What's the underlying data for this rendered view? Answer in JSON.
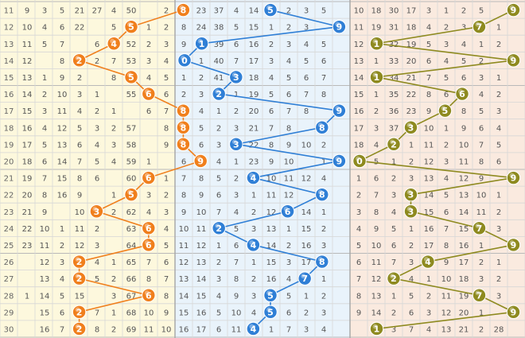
{
  "chart_data": {
    "type": "line",
    "x": [
      11,
      12,
      13,
      14,
      15,
      16,
      17,
      18,
      19,
      20,
      21,
      22,
      23,
      24,
      25,
      26,
      27,
      28,
      29,
      30
    ],
    "series": [
      {
        "values": [
          8,
          5,
          4,
          2,
          5,
          6,
          8,
          8,
          8,
          9,
          6,
          5,
          3,
          6,
          6,
          2,
          2,
          6,
          2,
          2
        ],
        "color": "#f07f1c"
      },
      {
        "values": [
          5,
          9,
          1,
          0,
          3,
          2,
          9,
          8,
          3,
          9,
          4,
          8,
          6,
          2,
          4,
          8,
          7,
          5,
          5,
          4
        ],
        "color": "#2f7fd6"
      },
      {
        "values": [
          9,
          7,
          1,
          9,
          1,
          6,
          5,
          3,
          2,
          0,
          9,
          3,
          3,
          7,
          9,
          4,
          2,
          7,
          9,
          1
        ],
        "color": "#8e8a1f"
      }
    ],
    "left_cols": [
      [
        9,
        3,
        5,
        21,
        27,
        4,
        50,
        null,
        2
      ],
      [
        10,
        4,
        6,
        22,
        null,
        5,
        51,
        1,
        2
      ],
      [
        11,
        5,
        7,
        null,
        6,
        1,
        52,
        2,
        3
      ],
      [
        12,
        null,
        8,
        1,
        2,
        7,
        53,
        3,
        4
      ],
      [
        13,
        1,
        9,
        2,
        null,
        8,
        54,
        4,
        5
      ],
      [
        14,
        2,
        10,
        3,
        1,
        null,
        55,
        5,
        6
      ],
      [
        15,
        3,
        11,
        4,
        2,
        1,
        null,
        6,
        7
      ],
      [
        16,
        4,
        12,
        5,
        3,
        2,
        57,
        null,
        8
      ],
      [
        17,
        5,
        13,
        6,
        4,
        3,
        58,
        null,
        9
      ],
      [
        18,
        6,
        14,
        7,
        5,
        4,
        59,
        1,
        null
      ],
      [
        19,
        7,
        15,
        8,
        6,
        null,
        60,
        2,
        1
      ],
      [
        20,
        8,
        16,
        9,
        null,
        1,
        61,
        3,
        2
      ],
      [
        21,
        9,
        null,
        10,
        1,
        2,
        62,
        4,
        3
      ],
      [
        22,
        10,
        1,
        11,
        2,
        null,
        63,
        5,
        4
      ],
      [
        23,
        11,
        2,
        12,
        3,
        null,
        64,
        6,
        5
      ],
      [
        null,
        12,
        3,
        13,
        4,
        1,
        65,
        7,
        6
      ],
      [
        null,
        13,
        4,
        14,
        5,
        2,
        66,
        8,
        7
      ],
      [
        1,
        14,
        5,
        15,
        null,
        3,
        67,
        9,
        8
      ],
      [
        null,
        15,
        6,
        16,
        7,
        1,
        68,
        10,
        9
      ],
      [
        null,
        16,
        7,
        17,
        8,
        2,
        69,
        11,
        10
      ]
    ],
    "mid_cols": [
      [
        7,
        23,
        37,
        4,
        14,
        null,
        2,
        3,
        5
      ],
      [
        8,
        24,
        38,
        5,
        15,
        1,
        2,
        3,
        null
      ],
      [
        9,
        null,
        39,
        6,
        16,
        2,
        3,
        4,
        5
      ],
      [
        null,
        1,
        40,
        7,
        17,
        3,
        4,
        5,
        6
      ],
      [
        1,
        2,
        41,
        null,
        18,
        4,
        5,
        6,
        7
      ],
      [
        2,
        3,
        null,
        1,
        19,
        5,
        6,
        7,
        8
      ],
      [
        3,
        4,
        1,
        2,
        20,
        6,
        7,
        8,
        null
      ],
      [
        4,
        5,
        2,
        3,
        21,
        7,
        8,
        null,
        9
      ],
      [
        5,
        6,
        3,
        null,
        22,
        8,
        9,
        10,
        2
      ],
      [
        6,
        7,
        4,
        1,
        23,
        9,
        10,
        null,
        1
      ],
      [
        7,
        8,
        5,
        2,
        null,
        10,
        11,
        12,
        4
      ],
      [
        8,
        9,
        6,
        3,
        1,
        11,
        12,
        null,
        1
      ],
      [
        9,
        10,
        7,
        4,
        2,
        12,
        null,
        14,
        1
      ],
      [
        10,
        11,
        null,
        5,
        3,
        13,
        1,
        15,
        2
      ],
      [
        11,
        12,
        1,
        6,
        null,
        14,
        2,
        16,
        3
      ],
      [
        12,
        13,
        2,
        7,
        1,
        15,
        3,
        17,
        null
      ],
      [
        13,
        14,
        3,
        8,
        2,
        16,
        4,
        null,
        1
      ],
      [
        14,
        15,
        4,
        9,
        3,
        null,
        5,
        1,
        2
      ],
      [
        15,
        16,
        5,
        10,
        4,
        null,
        6,
        2,
        3
      ],
      [
        16,
        17,
        6,
        11,
        null,
        1,
        7,
        3,
        4
      ]
    ],
    "right_cols": [
      [
        10,
        18,
        30,
        17,
        3,
        1,
        2,
        5,
        null
      ],
      [
        11,
        19,
        31,
        18,
        4,
        2,
        3,
        null,
        1
      ],
      [
        12,
        null,
        32,
        19,
        5,
        3,
        4,
        1,
        2
      ],
      [
        13,
        1,
        33,
        20,
        6,
        4,
        5,
        2,
        null
      ],
      [
        14,
        null,
        34,
        21,
        7,
        5,
        6,
        3,
        1
      ],
      [
        15,
        1,
        35,
        22,
        8,
        6,
        7,
        4,
        2
      ],
      [
        16,
        2,
        36,
        23,
        9,
        null,
        8,
        5,
        3
      ],
      [
        17,
        3,
        37,
        null,
        10,
        1,
        9,
        6,
        4
      ],
      [
        18,
        4,
        null,
        1,
        11,
        2,
        10,
        7,
        5
      ],
      [
        null,
        5,
        1,
        2,
        12,
        3,
        11,
        8,
        6
      ],
      [
        1,
        6,
        2,
        3,
        13,
        4,
        12,
        9,
        null
      ],
      [
        2,
        7,
        3,
        null,
        14,
        5,
        13,
        10,
        1
      ],
      [
        3,
        8,
        4,
        null,
        15,
        6,
        14,
        11,
        2
      ],
      [
        4,
        9,
        5,
        1,
        16,
        7,
        15,
        null,
        3
      ],
      [
        5,
        10,
        6,
        2,
        17,
        8,
        16,
        1,
        null
      ],
      [
        6,
        11,
        7,
        3,
        null,
        9,
        17,
        2,
        1
      ],
      [
        7,
        12,
        null,
        4,
        1,
        10,
        18,
        3,
        2
      ],
      [
        8,
        13,
        1,
        5,
        2,
        11,
        19,
        null,
        3
      ],
      [
        9,
        14,
        2,
        6,
        3,
        12,
        20,
        1,
        null
      ],
      [
        null,
        15,
        3,
        7,
        4,
        13,
        21,
        2,
        28
      ]
    ]
  }
}
